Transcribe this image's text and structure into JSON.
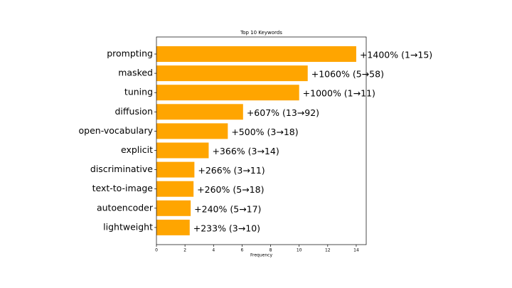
{
  "chart_data": {
    "type": "barh",
    "title": "Top 10 Keywords",
    "xlabel": "Frequency",
    "categories": [
      "prompting",
      "masked",
      "tuning",
      "diffusion",
      "open-vocabulary",
      "explicit",
      "discriminative",
      "text-to-image",
      "autoencoder",
      "lightweight"
    ],
    "values": [
      14,
      10.6,
      10,
      6.07,
      5,
      3.66,
      2.66,
      2.6,
      2.4,
      2.33
    ],
    "annotations": [
      "+1400% (1→15)",
      "+1060% (5→58)",
      "+1000% (1→11)",
      "+607% (13→92)",
      "+500% (3→18)",
      "+366% (3→14)",
      "+266% (3→11)",
      "+260% (5→18)",
      "+240% (5→17)",
      "+233% (3→10)"
    ],
    "color": "#ffa500",
    "xlim": [
      0,
      14.7
    ],
    "xticks": [
      0,
      2,
      4,
      6,
      8,
      10,
      12,
      14
    ]
  }
}
